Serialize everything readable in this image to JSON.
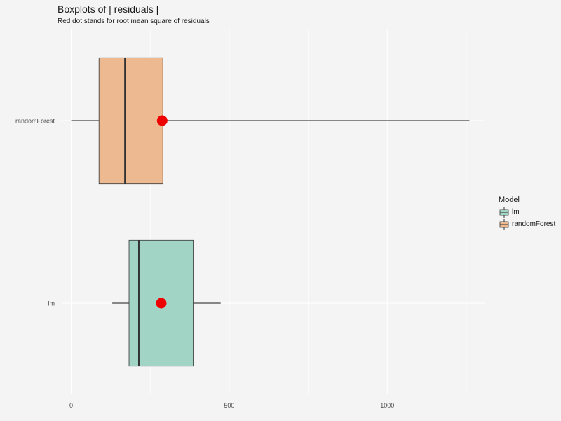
{
  "chart_data": {
    "type": "boxplot",
    "title": "Boxplots of | residuals |",
    "subtitle": "Red dot stands for root mean square of residuals",
    "xlabel": "",
    "ylabel": "",
    "orientation": "horizontal",
    "xlim": [
      -30,
      1310
    ],
    "x_ticks": [
      0,
      500,
      1000
    ],
    "x_tick_labels": [
      "0",
      "500",
      "1000"
    ],
    "categories": [
      "randomForest",
      "lm"
    ],
    "grid": true,
    "series": [
      {
        "name": "randomForest",
        "whisker_low": 0,
        "q1": 88,
        "median": 170,
        "q3": 290,
        "whisker_high": 1260,
        "rmse": 288,
        "color": "#edb990"
      },
      {
        "name": "lm",
        "whisker_low": 130,
        "q1": 183,
        "median": 214,
        "q3": 386,
        "whisker_high": 473,
        "rmse": 285,
        "color": "#a2d4c6"
      }
    ],
    "rmse_color": "#ee0000",
    "legend": {
      "title": "Model",
      "position": "right",
      "entries": [
        "lm",
        "randomForest"
      ]
    }
  }
}
